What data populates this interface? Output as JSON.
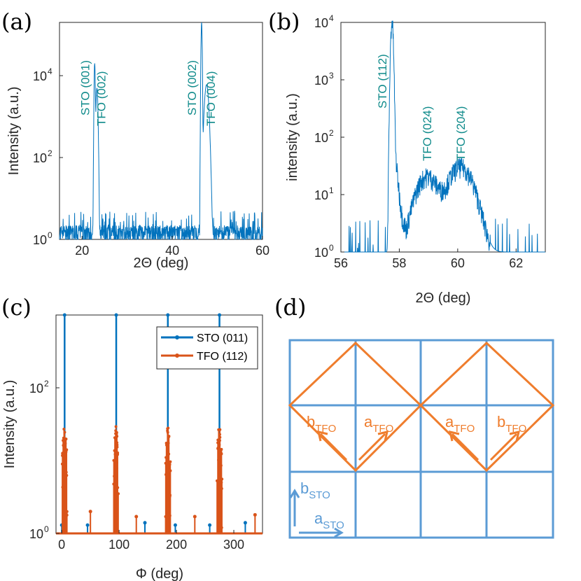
{
  "figure": {
    "panel_labels": [
      "(a)",
      "(b)",
      "(c)",
      "(d)"
    ]
  },
  "colors": {
    "blue": "#0072bd",
    "orange": "#d95319",
    "teal": "#0e8a8a",
    "lattice_blue": "#5b9bd5",
    "lattice_orange": "#ef7d2d"
  },
  "chart_data": [
    {
      "panel": "(a)",
      "type": "line",
      "yscale": "log",
      "xlabel": "2Θ (deg)",
      "ylabel": "Intensity (a.u.)",
      "xlim": [
        15,
        60
      ],
      "ylim": [
        1,
        200000
      ],
      "x_ticks": [
        20,
        40,
        60
      ],
      "y_ticks": [
        {
          "base": "10",
          "exp": "0",
          "value": 1
        },
        {
          "base": "10",
          "exp": "2",
          "value": 100
        },
        {
          "base": "10",
          "exp": "4",
          "value": 10000
        }
      ],
      "peaks": [
        {
          "label": "STO (001)",
          "x": 22.8,
          "height": 20000,
          "width": 0.12
        },
        {
          "label": "TFO (002)",
          "x": 23.3,
          "height": 5000,
          "width": 0.2
        },
        {
          "label": "STO (002)",
          "x": 46.5,
          "height": 200000,
          "width": 0.12
        },
        {
          "label": "TFO (004)",
          "x": 47.6,
          "height": 6000,
          "width": 0.45
        }
      ],
      "noise_level": 3
    },
    {
      "panel": "(b)",
      "type": "line",
      "yscale": "log",
      "xlabel": "2Θ (deg)",
      "ylabel": "intensity (a.u.)",
      "xlim": [
        56,
        63
      ],
      "ylim": [
        1,
        10000
      ],
      "x_ticks": [
        56,
        58,
        60,
        62
      ],
      "y_ticks": [
        {
          "base": "10",
          "exp": "0",
          "value": 1
        },
        {
          "base": "10",
          "exp": "1",
          "value": 10
        },
        {
          "base": "10",
          "exp": "2",
          "value": 100
        },
        {
          "base": "10",
          "exp": "3",
          "value": 1000
        },
        {
          "base": "10",
          "exp": "4",
          "value": 10000
        }
      ],
      "peaks": [
        {
          "label": "STO (112)",
          "x": 57.75,
          "height": 10000,
          "width": 0.05
        },
        {
          "label": "TFO (024)",
          "x": 58.95,
          "height": 20,
          "width": 0.45
        },
        {
          "label": "TFO (204)",
          "x": 60.1,
          "height": 30,
          "width": 0.5
        }
      ]
    },
    {
      "panel": "(c)",
      "type": "line",
      "yscale": "log",
      "xlabel": "Φ (deg)",
      "ylabel": "Intensity (a.u.)",
      "xlim": [
        -10,
        350
      ],
      "ylim": [
        1,
        1000
      ],
      "x_ticks": [
        0,
        100,
        200,
        300
      ],
      "y_ticks": [
        {
          "base": "10",
          "exp": "0",
          "value": 1
        },
        {
          "base": "10",
          "exp": "2",
          "value": 100
        }
      ],
      "series": [
        {
          "name": "STO (011)",
          "color": "#0072bd",
          "peaks": [
            5,
            95,
            185,
            275
          ],
          "peak_height": 1000,
          "extra_spikes": [
            [
              0,
              1.3
            ],
            [
              45,
              1.3
            ],
            [
              145,
              1.4
            ],
            [
              198,
              1.3
            ],
            [
              258,
              1.3
            ],
            [
              275,
              1.4
            ],
            [
              320,
              1.4
            ]
          ]
        },
        {
          "name": "TFO (112)",
          "color": "#d95319",
          "peaks": [
            5,
            95,
            185,
            275
          ],
          "peak_height": 30,
          "extra_spikes": [
            [
              50,
              2.0
            ],
            [
              130,
              1.7
            ],
            [
              232,
              1.7
            ],
            [
              337,
              1.8
            ]
          ]
        }
      ],
      "legend": "top-right"
    },
    {
      "panel": "(d)",
      "type": "diagram",
      "labels": {
        "a_tfo": "a",
        "b_tfo": "b",
        "tfo_sub": "TFO",
        "a_sto": "a",
        "b_sto": "b",
        "sto_sub": "STO"
      }
    }
  ]
}
